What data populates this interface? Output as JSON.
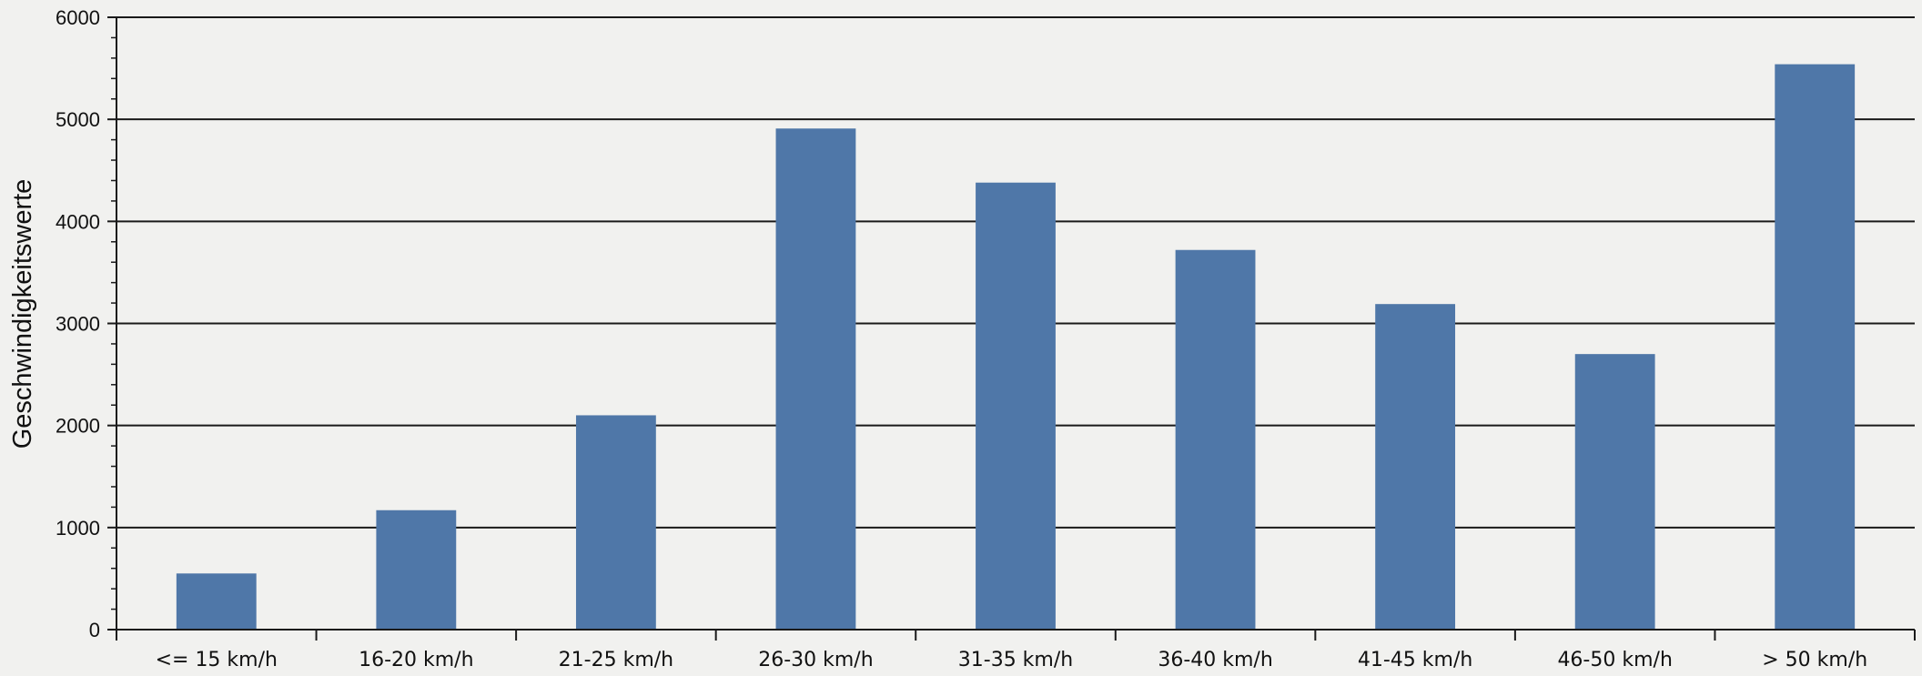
{
  "chart_data": {
    "type": "bar",
    "title": "",
    "xlabel": "",
    "ylabel": "Geschwindigkeitswerte",
    "categories": [
      "<= 15 km/h",
      "16-20 km/h",
      "21-25 km/h",
      "26-30 km/h",
      "31-35 km/h",
      "36-40 km/h",
      "41-45 km/h",
      "46-50 km/h",
      "> 50 km/h"
    ],
    "values": [
      550,
      1170,
      2100,
      4910,
      4380,
      3720,
      3190,
      2700,
      5540
    ],
    "ylim": [
      0,
      6000
    ],
    "yticks": [
      "0",
      "1000",
      "2000",
      "3000",
      "4000",
      "5000",
      "6000"
    ],
    "grid": true,
    "legend": "none",
    "colors": {
      "bar": "#4f77a8",
      "grid": "#1a1a1a",
      "axis": "#1a1a1a",
      "background": "#f1f1ef"
    }
  }
}
